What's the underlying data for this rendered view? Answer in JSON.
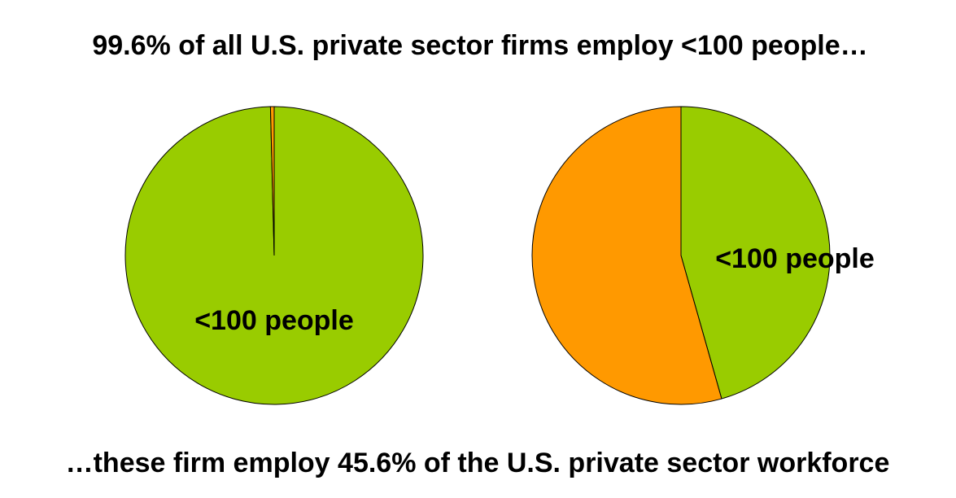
{
  "header": {
    "title": "99.6% of all U.S. private sector firms employ <100 people…"
  },
  "footer": {
    "caption": "…these firm employ 45.6% of the U.S. private sector workforce"
  },
  "chart_data": [
    {
      "type": "pie",
      "categories": [
        "<100 people",
        null
      ],
      "values": [
        99.6,
        0.4
      ],
      "colors": [
        "#99cc00",
        "#ff9900"
      ]
    },
    {
      "type": "pie",
      "categories": [
        "<100 people",
        null
      ],
      "values": [
        45.6,
        54.4
      ],
      "colors": [
        "#99cc00",
        "#ff9900"
      ]
    }
  ]
}
